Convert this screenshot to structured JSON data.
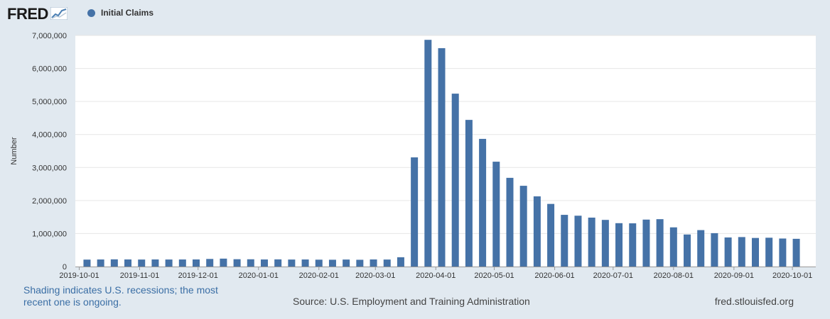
{
  "header": {
    "logo_text": "FRED",
    "logo_icon": "fred-graph-icon"
  },
  "colors": {
    "bar": "#4572a7",
    "plot_bg": "#ffffff",
    "page_bg": "#e1e9f0",
    "grid": "#e6e6e6",
    "note": "#3a6ea5"
  },
  "footer": {
    "note": "Shading indicates U.S. recessions; the most recent one is ongoing.",
    "source": "Source: U.S. Employment and Training Administration",
    "site": "fred.stlouisfed.org"
  },
  "chart_data": {
    "type": "bar",
    "title": "",
    "xlabel": "",
    "ylabel": "Number",
    "ylim": [
      0,
      7000000
    ],
    "y_ticks": [
      "0",
      "1,000,000",
      "2,000,000",
      "3,000,000",
      "4,000,000",
      "5,000,000",
      "6,000,000",
      "7,000,000"
    ],
    "y_tick_values": [
      0,
      1000000,
      2000000,
      3000000,
      4000000,
      5000000,
      6000000,
      7000000
    ],
    "x_tick_labels": [
      "2019-10-01",
      "2019-11-01",
      "2019-12-01",
      "2020-01-01",
      "2020-02-01",
      "2020-03-01",
      "2020-04-01",
      "2020-05-01",
      "2020-06-01",
      "2020-07-01",
      "2020-08-01",
      "2020-09-01",
      "2020-10-01"
    ],
    "xlim": [
      "2019-09-29",
      "2020-10-13"
    ],
    "grid": true,
    "legend_placement": "top-left",
    "series": [
      {
        "name": "Initial Claims",
        "x": [
          "2019-10-05",
          "2019-10-12",
          "2019-10-19",
          "2019-10-26",
          "2019-11-02",
          "2019-11-09",
          "2019-11-16",
          "2019-11-23",
          "2019-11-30",
          "2019-12-07",
          "2019-12-14",
          "2019-12-21",
          "2019-12-28",
          "2020-01-04",
          "2020-01-11",
          "2020-01-18",
          "2020-01-25",
          "2020-02-01",
          "2020-02-08",
          "2020-02-15",
          "2020-02-22",
          "2020-02-29",
          "2020-03-07",
          "2020-03-14",
          "2020-03-21",
          "2020-03-28",
          "2020-04-04",
          "2020-04-11",
          "2020-04-18",
          "2020-04-25",
          "2020-05-02",
          "2020-05-09",
          "2020-05-16",
          "2020-05-23",
          "2020-05-30",
          "2020-06-06",
          "2020-06-13",
          "2020-06-20",
          "2020-06-27",
          "2020-07-04",
          "2020-07-11",
          "2020-07-18",
          "2020-07-25",
          "2020-08-01",
          "2020-08-08",
          "2020-08-15",
          "2020-08-22",
          "2020-08-29",
          "2020-09-05",
          "2020-09-12",
          "2020-09-19",
          "2020-09-26",
          "2020-10-03"
        ],
        "values": [
          210000,
          214000,
          218000,
          215000,
          212000,
          215000,
          213000,
          214000,
          215000,
          230000,
          240000,
          222000,
          220000,
          214000,
          217000,
          212000,
          214000,
          208000,
          206000,
          212000,
          205000,
          215000,
          212000,
          282000,
          3307000,
          6867000,
          6615000,
          5237000,
          4442000,
          3867000,
          3176000,
          2687000,
          2446000,
          2126000,
          1897000,
          1566000,
          1540000,
          1482000,
          1413000,
          1314000,
          1309000,
          1422000,
          1435000,
          1187000,
          971000,
          1104000,
          1011000,
          881000,
          893000,
          866000,
          873000,
          849000,
          840000
        ]
      }
    ]
  }
}
